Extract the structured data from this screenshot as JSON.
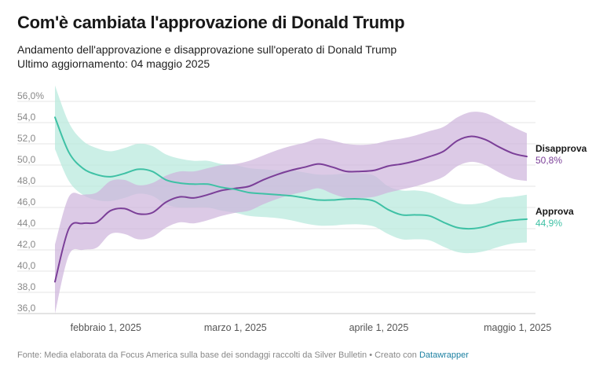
{
  "header": {
    "title": "Com'è cambiata l'approvazione di Donald Trump",
    "subtitle_line1": "Andamento dell'approvazione e disapprovazione sull'operato di Donald Trump",
    "subtitle_line2": "Ultimo aggiornamento: 04 maggio 2025"
  },
  "footer": {
    "source_text": "Fonte: Media elaborata da Focus America sulla base dei sondaggi raccolti da Silver Bulletin • Creato con",
    "link_text": "Datawrapper"
  },
  "chart_data": {
    "type": "line",
    "x_label_dates": [
      "febbraio 1, 2025",
      "marzo 1, 2025",
      "aprile 1, 2025",
      "maggio 1, 2025"
    ],
    "y_ticks": [
      "56,0%",
      "54,0",
      "52,0",
      "50,0",
      "48,0",
      "46,0",
      "44,0",
      "42,0",
      "40,0",
      "38,0",
      "36,0"
    ],
    "ylim": [
      36,
      56
    ],
    "x_dates": [
      "2025-01-21",
      "2025-01-24",
      "2025-01-27",
      "2025-01-30",
      "2025-02-02",
      "2025-02-05",
      "2025-02-08",
      "2025-02-11",
      "2025-02-14",
      "2025-02-17",
      "2025-02-20",
      "2025-02-23",
      "2025-02-26",
      "2025-03-01",
      "2025-03-04",
      "2025-03-07",
      "2025-03-10",
      "2025-03-13",
      "2025-03-16",
      "2025-03-19",
      "2025-03-22",
      "2025-03-25",
      "2025-03-28",
      "2025-03-31",
      "2025-04-03",
      "2025-04-06",
      "2025-04-09",
      "2025-04-12",
      "2025-04-15",
      "2025-04-18",
      "2025-04-21",
      "2025-04-24",
      "2025-04-27",
      "2025-04-30",
      "2025-05-03"
    ],
    "series": [
      {
        "name": "Disapprova",
        "last_value_label": "50,8%",
        "color": "#7b3f98",
        "band_color": "#cdb4dc",
        "values": [
          39.0,
          44.0,
          44.5,
          44.6,
          45.7,
          45.9,
          45.4,
          45.5,
          46.5,
          47.0,
          46.9,
          47.2,
          47.6,
          47.8,
          48.0,
          48.6,
          49.1,
          49.5,
          49.8,
          50.1,
          49.8,
          49.4,
          49.4,
          49.5,
          49.9,
          50.1,
          50.4,
          50.8,
          51.3,
          52.3,
          52.7,
          52.4,
          51.7,
          51.1,
          50.8
        ],
        "upper": [
          42.5,
          47.0,
          47.2,
          47.4,
          48.5,
          48.6,
          48.1,
          48.3,
          49.0,
          49.4,
          49.4,
          49.7,
          50.0,
          50.1,
          50.4,
          50.9,
          51.4,
          51.8,
          52.1,
          52.5,
          52.3,
          52.0,
          51.9,
          52.0,
          52.3,
          52.5,
          52.8,
          53.2,
          53.6,
          54.5,
          55.0,
          54.9,
          54.3,
          53.6,
          53.0
        ],
        "lower": [
          36.0,
          41.5,
          42.0,
          42.2,
          43.5,
          43.5,
          43.0,
          43.2,
          44.1,
          44.6,
          44.5,
          44.8,
          45.2,
          45.5,
          45.7,
          46.3,
          46.8,
          47.2,
          47.5,
          47.8,
          47.3,
          46.9,
          46.9,
          47.0,
          47.4,
          47.7,
          48.0,
          48.4,
          48.9,
          49.9,
          50.3,
          50.0,
          49.3,
          48.7,
          48.5
        ]
      },
      {
        "name": "Approva",
        "last_value_label": "44,9%",
        "color": "#3fc1a5",
        "band_color": "#b5e8dc",
        "values": [
          54.5,
          51.2,
          49.7,
          49.1,
          48.9,
          49.2,
          49.6,
          49.4,
          48.6,
          48.3,
          48.2,
          48.2,
          47.9,
          47.7,
          47.4,
          47.3,
          47.2,
          47.1,
          46.9,
          46.7,
          46.7,
          46.8,
          46.8,
          46.6,
          45.8,
          45.3,
          45.3,
          45.2,
          44.6,
          44.1,
          44.0,
          44.2,
          44.6,
          44.8,
          44.9
        ],
        "upper": [
          57.5,
          54.0,
          52.3,
          51.6,
          51.3,
          51.6,
          52.0,
          51.8,
          51.0,
          50.6,
          50.4,
          50.4,
          50.1,
          50.0,
          49.7,
          49.6,
          49.5,
          49.5,
          49.3,
          49.1,
          49.1,
          49.2,
          49.2,
          49.0,
          48.0,
          47.6,
          47.6,
          47.4,
          46.9,
          46.4,
          46.3,
          46.5,
          46.9,
          47.0,
          47.2
        ],
        "lower": [
          51.5,
          48.5,
          47.2,
          46.7,
          46.6,
          46.9,
          47.3,
          47.1,
          46.3,
          46.0,
          46.0,
          46.0,
          45.7,
          45.5,
          45.2,
          45.1,
          45.0,
          44.8,
          44.5,
          44.3,
          44.3,
          44.4,
          44.4,
          44.2,
          43.5,
          43.0,
          43.0,
          42.9,
          42.3,
          41.8,
          41.7,
          41.9,
          42.3,
          42.6,
          42.7
        ]
      }
    ]
  }
}
